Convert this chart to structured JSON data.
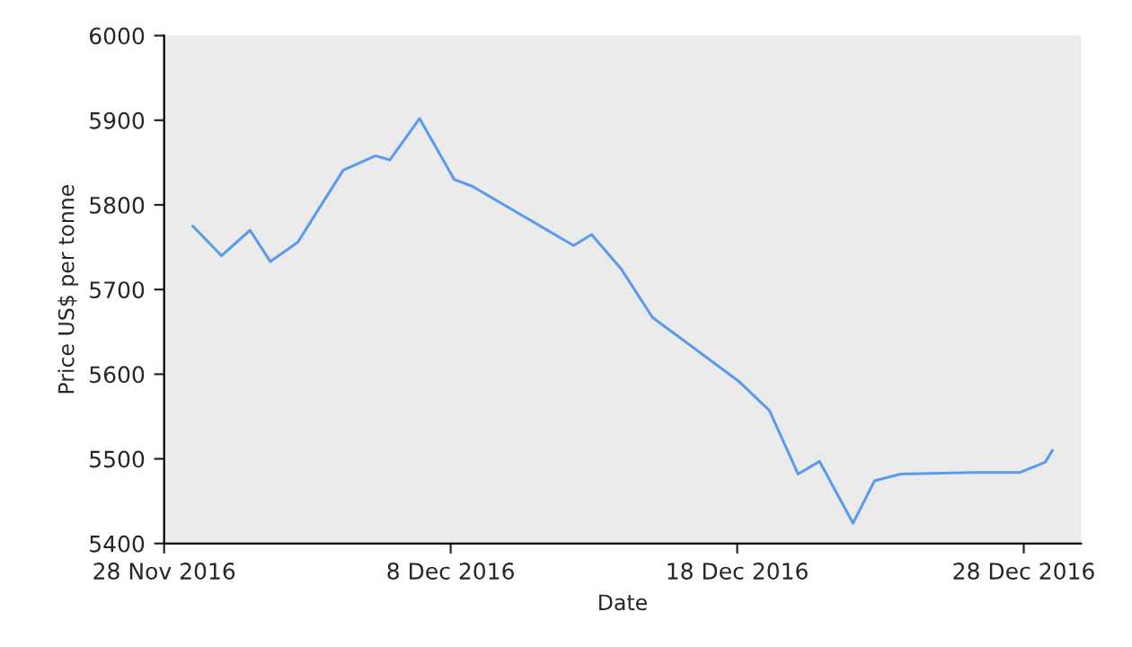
{
  "chart_data": {
    "type": "line",
    "xlabel": "Date",
    "ylabel": "Price US$ per tonne",
    "x": [
      "2016-11-29",
      "2016-11-30",
      "2016-12-01",
      "2016-12-01T17:00",
      "2016-12-02T16:00",
      "2016-12-04T06:00",
      "2016-12-05T09:00",
      "2016-12-05T21:00",
      "2016-12-06T22:00",
      "2016-12-08T03:00",
      "2016-12-08T18:00",
      "2016-12-12T07:00",
      "2016-12-12T22:00",
      "2016-12-13T23:00",
      "2016-12-15T01:00",
      "2016-12-18T01:00",
      "2016-12-19T03:00",
      "2016-12-20T03:00",
      "2016-12-20T21:00",
      "2016-12-22T01:00",
      "2016-12-22T19:00",
      "2016-12-23T17:00",
      "2016-12-26T06:00",
      "2016-12-27T21:00",
      "2016-12-28T18:00",
      "2016-12-29"
    ],
    "series": [
      {
        "color": "#5b9bec",
        "values": [
          5775,
          5740,
          5770,
          5733,
          5756,
          5841,
          5858,
          5853,
          5902,
          5830,
          5822,
          5752,
          5765,
          5724,
          5667,
          5592,
          5557,
          5482,
          5497,
          5424,
          5474,
          5482,
          5484,
          5484,
          5496,
          5510
        ]
      }
    ],
    "xlim": [
      "2016-11-28",
      "2016-12-30"
    ],
    "xticks": [
      {
        "value": "2016-11-28",
        "label": "28 Nov 2016"
      },
      {
        "value": "2016-12-08",
        "label": "8 Dec 2016"
      },
      {
        "value": "2016-12-18",
        "label": "18 Dec 2016"
      },
      {
        "value": "2016-12-28",
        "label": "28 Dec 2016"
      }
    ],
    "ylim": [
      5400,
      6000
    ],
    "yticks": [
      5400,
      5500,
      5600,
      5700,
      5800,
      5900,
      6000
    ],
    "grid": false,
    "legend": false,
    "marker": "none",
    "line_style": "solid"
  }
}
